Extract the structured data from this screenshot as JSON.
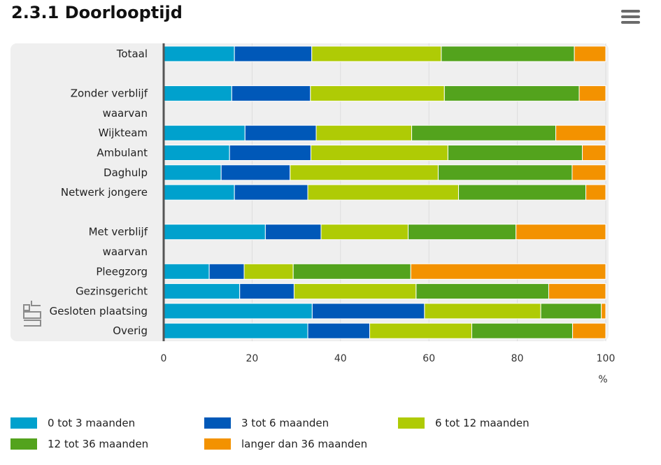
{
  "header": {
    "title": "2.3.1 Doorlooptijd",
    "menu_icon": "hamburger-menu-icon"
  },
  "branding": {
    "logo_icon": "cbs-logo-icon"
  },
  "colors": {
    "panel_bg": "#efefef",
    "axis": "#555555",
    "grid": "#dddddd"
  },
  "chart_data": {
    "type": "bar",
    "orientation": "horizontal",
    "stacked": true,
    "title": "2.3.1 Doorlooptijd",
    "xlabel": "%",
    "xlim": [
      0,
      100
    ],
    "xticks": [
      0,
      20,
      40,
      60,
      80,
      100
    ],
    "grid": true,
    "legend_position": "bottom",
    "categories": [
      "Totaal",
      "",
      "Zonder verblijf",
      "waarvan",
      "Wijkteam",
      "Ambulant",
      "Daghulp",
      "Netwerk jongere",
      "",
      "Met verblijf",
      "waarvan",
      "Pleegzorg",
      "Gezinsgericht",
      "Gesloten plaatsing",
      "Overig"
    ],
    "series": [
      {
        "name": "0 tot 3 maanden",
        "color": "#00a1cd",
        "values": [
          16,
          null,
          15.4,
          null,
          18.4,
          14.9,
          13,
          16,
          null,
          23,
          null,
          10.3,
          17.2,
          33.6,
          32.6
        ]
      },
      {
        "name": "3 tot 6 maanden",
        "color": "#0058b8",
        "values": [
          17.5,
          null,
          17.8,
          null,
          16.1,
          18.4,
          15.6,
          16.6,
          null,
          12.6,
          null,
          7.9,
          12.3,
          25.4,
          14
        ]
      },
      {
        "name": "6 tot 12 maanden",
        "color": "#afcb05",
        "values": [
          29.3,
          null,
          30.3,
          null,
          21.6,
          31,
          33.5,
          34.1,
          null,
          19.7,
          null,
          11.1,
          27.6,
          26.3,
          23.1
        ]
      },
      {
        "name": "12 tot 36 maanden",
        "color": "#53a31d",
        "values": [
          30.1,
          null,
          30.5,
          null,
          32.6,
          30.4,
          30.3,
          28.8,
          null,
          24.4,
          null,
          26.6,
          30,
          13.7,
          22.8
        ]
      },
      {
        "name": "langer dan 36 maanden",
        "color": "#f39200",
        "values": [
          7.1,
          null,
          6,
          null,
          11.3,
          5.3,
          7.6,
          4.5,
          null,
          20.3,
          null,
          44.1,
          12.9,
          1,
          7.5
        ]
      }
    ]
  }
}
